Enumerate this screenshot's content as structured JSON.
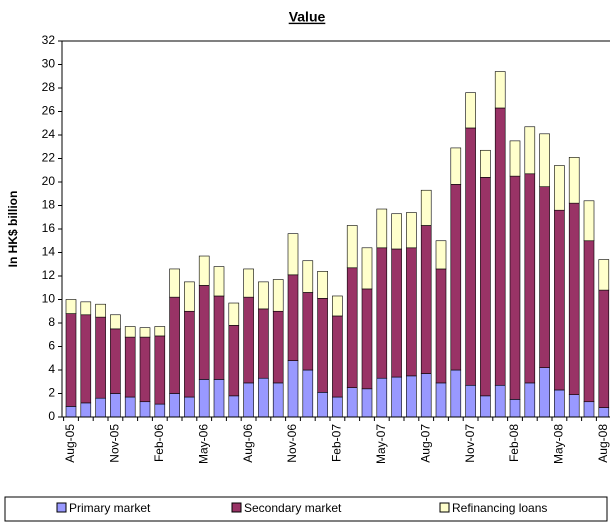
{
  "chart_data": {
    "type": "stacked-bar",
    "title": "Value",
    "y_label": "In HK$ billion",
    "categories": [
      "Aug-05",
      null,
      null,
      "Nov-05",
      null,
      null,
      "Feb-06",
      null,
      null,
      "May-06",
      null,
      null,
      "Aug-06",
      null,
      null,
      "Nov-06",
      null,
      null,
      "Feb-07",
      null,
      null,
      "May-07",
      null,
      null,
      "Aug-07",
      null,
      null,
      "Nov-07",
      null,
      null,
      "Feb-08",
      null,
      null,
      "May-08",
      null,
      null,
      "Aug-08"
    ],
    "series": [
      {
        "name": "Primary market",
        "color": "#9999ff",
        "values": [
          0.9,
          1.2,
          1.6,
          2.0,
          1.7,
          1.3,
          1.1,
          2.0,
          1.7,
          3.2,
          3.2,
          1.8,
          2.9,
          3.3,
          2.9,
          4.8,
          4.0,
          2.1,
          1.7,
          2.5,
          2.4,
          3.3,
          3.4,
          3.5,
          3.7,
          2.9,
          4.0,
          2.7,
          1.8,
          2.7,
          1.5,
          2.9,
          4.2,
          2.3,
          1.9,
          1.3,
          0.8
        ]
      },
      {
        "name": "Secondary market",
        "color": "#993366",
        "values": [
          7.9,
          7.5,
          6.9,
          5.5,
          5.1,
          5.5,
          5.8,
          8.2,
          7.3,
          8.0,
          7.1,
          6.0,
          7.3,
          5.9,
          6.1,
          7.3,
          6.6,
          8.0,
          6.9,
          10.2,
          8.5,
          11.1,
          10.9,
          10.9,
          12.6,
          9.7,
          15.8,
          21.9,
          18.6,
          23.6,
          19.0,
          17.8,
          15.4,
          15.3,
          16.3,
          13.7,
          10.0
        ]
      },
      {
        "name": "Refinancing loans",
        "color": "#ffffcc",
        "values": [
          1.2,
          1.1,
          1.1,
          1.2,
          0.9,
          0.8,
          0.8,
          2.4,
          2.5,
          2.5,
          2.5,
          1.9,
          2.4,
          2.3,
          2.7,
          3.5,
          2.7,
          2.3,
          1.7,
          3.6,
          3.5,
          3.3,
          3.0,
          3.0,
          3.0,
          2.4,
          3.1,
          3.0,
          2.3,
          3.1,
          3.0,
          4.0,
          4.5,
          3.8,
          3.9,
          3.4,
          2.6
        ]
      }
    ],
    "ylim": [
      0,
      32
    ],
    "yticks": [
      0,
      2,
      4,
      6,
      8,
      10,
      12,
      14,
      16,
      18,
      20,
      22,
      24,
      26,
      28,
      30,
      32
    ]
  }
}
